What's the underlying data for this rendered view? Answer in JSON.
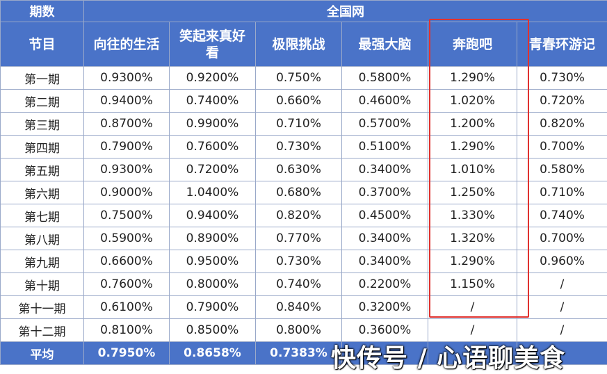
{
  "chart_data": {
    "type": "table",
    "header_top": {
      "period_label": "期数",
      "group_label": "全国网"
    },
    "header_main": {
      "program_label": "节目",
      "shows": [
        "向往的生活",
        "笑起来真好看",
        "极限挑战",
        "最强大脑",
        "奔跑吧",
        "青春环游记"
      ]
    },
    "rows": [
      {
        "episode": "第一期",
        "values": [
          "0.9300%",
          "0.9200%",
          "0.750%",
          "0.5800%",
          "1.290%",
          "0.730%"
        ]
      },
      {
        "episode": "第二期",
        "values": [
          "0.9400%",
          "0.7400%",
          "0.660%",
          "0.4600%",
          "1.020%",
          "0.720%"
        ]
      },
      {
        "episode": "第三期",
        "values": [
          "0.8700%",
          "0.9900%",
          "0.710%",
          "0.5700%",
          "1.200%",
          "0.820%"
        ]
      },
      {
        "episode": "第四期",
        "values": [
          "0.7900%",
          "0.7600%",
          "0.730%",
          "0.5100%",
          "1.290%",
          "0.700%"
        ]
      },
      {
        "episode": "第五期",
        "values": [
          "0.9300%",
          "0.7200%",
          "0.630%",
          "0.3400%",
          "1.010%",
          "0.580%"
        ]
      },
      {
        "episode": "第六期",
        "values": [
          "0.9000%",
          "1.0400%",
          "0.680%",
          "0.3700%",
          "1.250%",
          "0.710%"
        ]
      },
      {
        "episode": "第七期",
        "values": [
          "0.7500%",
          "0.9400%",
          "0.820%",
          "0.4500%",
          "1.330%",
          "0.740%"
        ]
      },
      {
        "episode": "第八期",
        "values": [
          "0.5900%",
          "0.8900%",
          "0.770%",
          "0.3400%",
          "1.320%",
          "0.700%"
        ]
      },
      {
        "episode": "第九期",
        "values": [
          "0.6600%",
          "0.9500%",
          "0.730%",
          "0.3400%",
          "1.290%",
          "0.960%"
        ]
      },
      {
        "episode": "第十期",
        "values": [
          "0.7600%",
          "0.8000%",
          "0.740%",
          "0.2200%",
          "1.150%",
          "/"
        ]
      },
      {
        "episode": "第十一期",
        "values": [
          "0.6100%",
          "0.7900%",
          "0.840%",
          "0.3200%",
          "/",
          "/"
        ]
      },
      {
        "episode": "第十二期",
        "values": [
          "0.8100%",
          "0.8500%",
          "0.800%",
          "0.3600%",
          "/",
          "/"
        ]
      }
    ],
    "average": {
      "label": "平均",
      "values": [
        "0.7950%",
        "0.8658%",
        "0.7383%",
        "",
        "",
        ""
      ]
    },
    "highlight": {
      "column": "奔跑吧",
      "color": "#e0322f"
    },
    "colors": {
      "header_bg": "#4a73c8",
      "header_text": "#ffffff",
      "border": "#9aa9c9"
    }
  },
  "watermark": "快传号 / 心语聊美食"
}
